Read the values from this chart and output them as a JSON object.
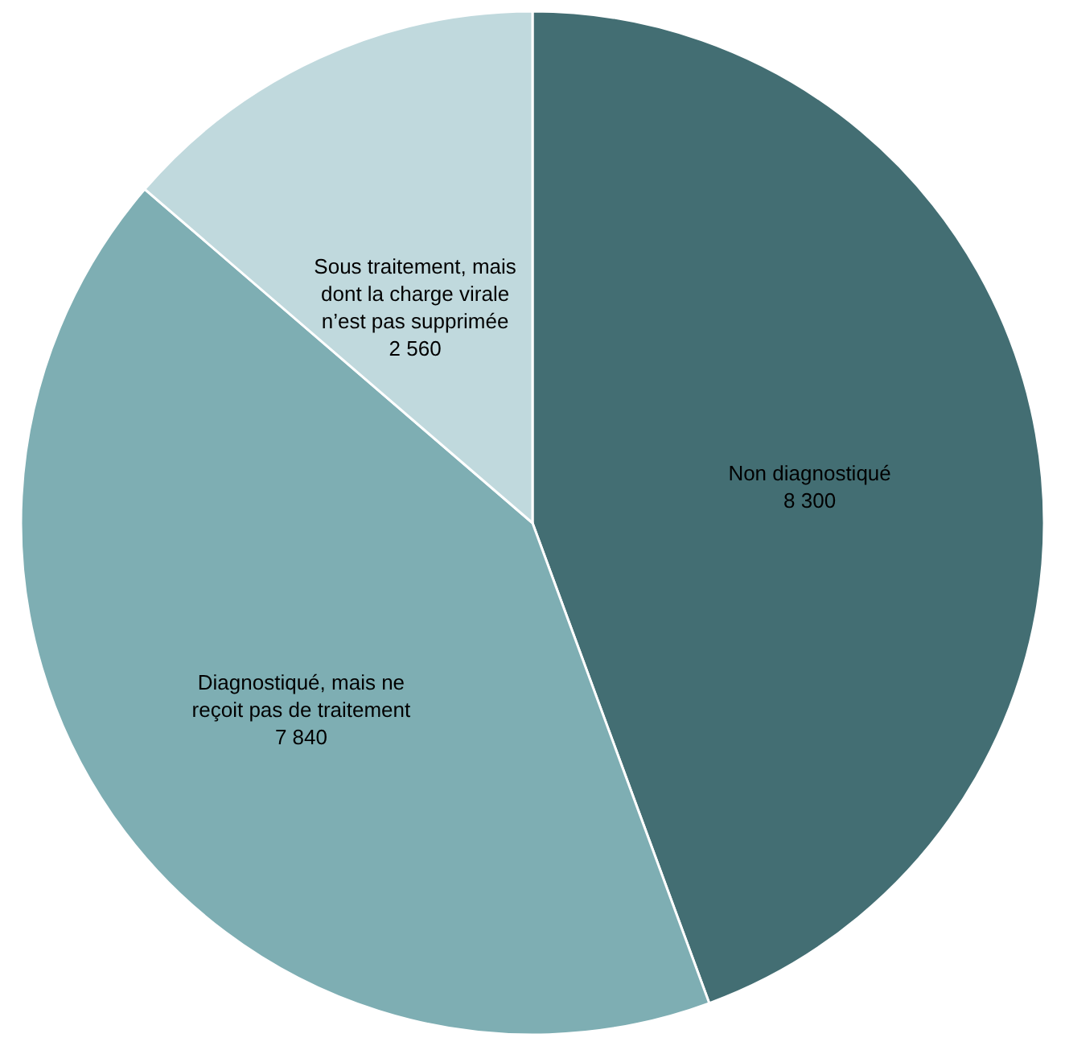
{
  "chart_data": {
    "type": "pie",
    "categories": [
      "Non diagnostiqué",
      "Diagnostiqué, mais ne reçoit pas de traitement",
      "Sous traitement, mais dont la charge virale n’est pas supprimée"
    ],
    "values": [
      8300,
      7840,
      2560
    ],
    "colors": [
      "#436e73",
      "#7eaeb3",
      "#c0d9dd"
    ],
    "value_labels": [
      "8 300",
      "7 840",
      "2 560"
    ]
  }
}
